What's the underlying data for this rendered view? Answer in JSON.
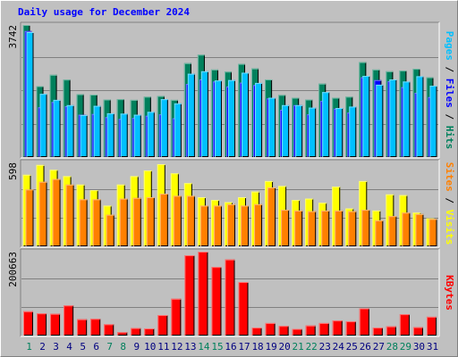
{
  "title": "Daily usage for December 2024",
  "colors": {
    "background": "#c0c0c0",
    "title": "#0000ff",
    "grid": "#808080",
    "hits": "#00805c",
    "files": "#0000ff",
    "pages": "#00c0ff",
    "visits": "#ffff00",
    "sites": "#ff8000",
    "kbytes": "#ff0000",
    "weekend_day": "#00805c",
    "weekday": "#000080"
  },
  "chart_data": [
    {
      "type": "bar",
      "panel": "top",
      "ylabel": "Pages / Files / Hits",
      "ylabel_parts": [
        {
          "text": "Pages",
          "color": "#00c0ff"
        },
        {
          "text": " / ",
          "color": "#000000"
        },
        {
          "text": "Files",
          "color": "#0000ff"
        },
        {
          "text": " / ",
          "color": "#000000"
        },
        {
          "text": "Hits",
          "color": "#00805c"
        }
      ],
      "ymax_label": "3742",
      "ylim": [
        0,
        3742
      ],
      "categories": [
        "1",
        "2",
        "3",
        "4",
        "5",
        "6",
        "7",
        "8",
        "9",
        "10",
        "11",
        "12",
        "13",
        "14",
        "15",
        "16",
        "17",
        "18",
        "19",
        "20",
        "21",
        "22",
        "23",
        "24",
        "25",
        "26",
        "27",
        "28",
        "29",
        "30",
        "31"
      ],
      "series": [
        {
          "name": "Hits",
          "color": "#00805c",
          "values": [
            3742,
            2010,
            2330,
            2195,
            1780,
            1770,
            1630,
            1640,
            1620,
            1710,
            1730,
            1620,
            2660,
            2900,
            2480,
            2420,
            2640,
            2510,
            2200,
            1760,
            1680,
            1630,
            2080,
            1680,
            1710,
            2690,
            2480,
            2430,
            2450,
            2500,
            2260
          ]
        },
        {
          "name": "Files",
          "color": "#0000ff",
          "values": [
            3570,
            1410,
            1560,
            1440,
            1200,
            1220,
            1130,
            1080,
            1110,
            1170,
            1210,
            1100,
            2070,
            2200,
            2140,
            2000,
            2110,
            2040,
            1660,
            1340,
            1470,
            1210,
            1590,
            1370,
            1260,
            2260,
            2180,
            2150,
            1980,
            1820,
            1700
          ]
        },
        {
          "name": "Pages",
          "color": "#00c0ff",
          "values": [
            3540,
            1790,
            1620,
            1470,
            1190,
            1450,
            1240,
            1230,
            1200,
            1280,
            1640,
            1520,
            2360,
            2430,
            2170,
            2180,
            2390,
            2100,
            1680,
            1470,
            1470,
            1400,
            1840,
            1390,
            1430,
            2300,
            2050,
            2200,
            2140,
            2290,
            2020
          ]
        }
      ]
    },
    {
      "type": "bar",
      "panel": "middle",
      "ylabel": "Sites / Visits",
      "ylabel_parts": [
        {
          "text": "Sites",
          "color": "#ff8000"
        },
        {
          "text": " / ",
          "color": "#000000"
        },
        {
          "text": "Visits",
          "color": "#ffff00"
        }
      ],
      "ymax_label": "598",
      "ylim": [
        0,
        598
      ],
      "categories": [
        "1",
        "2",
        "3",
        "4",
        "5",
        "6",
        "7",
        "8",
        "9",
        "10",
        "11",
        "12",
        "13",
        "14",
        "15",
        "16",
        "17",
        "18",
        "19",
        "20",
        "21",
        "22",
        "23",
        "24",
        "25",
        "26",
        "27",
        "28",
        "29",
        "30",
        "31"
      ],
      "series": [
        {
          "name": "Visits",
          "color": "#ffff00",
          "values": [
            510,
            580,
            545,
            500,
            440,
            400,
            290,
            440,
            500,
            540,
            585,
            520,
            450,
            350,
            330,
            315,
            350,
            390,
            465,
            430,
            330,
            340,
            310,
            425,
            270,
            465,
            255,
            370,
            365,
            240,
            200
          ]
        },
        {
          "name": "Sites",
          "color": "#ff8000",
          "values": [
            405,
            460,
            480,
            440,
            335,
            335,
            225,
            340,
            345,
            350,
            375,
            360,
            360,
            290,
            290,
            300,
            290,
            300,
            420,
            260,
            255,
            250,
            255,
            255,
            250,
            260,
            185,
            215,
            240,
            230,
            195
          ]
        }
      ]
    },
    {
      "type": "bar",
      "panel": "bottom",
      "ylabel": "KBytes",
      "ylabel_parts": [
        {
          "text": "KBytes",
          "color": "#ff0000"
        }
      ],
      "ymax_label": "200663",
      "ylim": [
        0,
        200663
      ],
      "categories": [
        "1",
        "2",
        "3",
        "4",
        "5",
        "6",
        "7",
        "8",
        "9",
        "10",
        "11",
        "12",
        "13",
        "14",
        "15",
        "16",
        "17",
        "18",
        "19",
        "20",
        "21",
        "22",
        "23",
        "24",
        "25",
        "26",
        "27",
        "28",
        "29",
        "30",
        "31"
      ],
      "series": [
        {
          "name": "KBytes",
          "color": "#ff0000",
          "values": [
            58000,
            53000,
            52000,
            72000,
            39000,
            40000,
            27000,
            8000,
            18000,
            17000,
            49000,
            88000,
            192000,
            200663,
            164000,
            182000,
            128000,
            19000,
            30000,
            23000,
            16000,
            24000,
            30000,
            36000,
            34000,
            65000,
            19000,
            22000,
            51000,
            20000,
            45000
          ]
        }
      ]
    }
  ],
  "x_axis": {
    "labels": [
      "1",
      "2",
      "3",
      "4",
      "5",
      "6",
      "7",
      "8",
      "9",
      "10",
      "11",
      "12",
      "13",
      "14",
      "15",
      "16",
      "17",
      "18",
      "19",
      "20",
      "21",
      "22",
      "23",
      "24",
      "25",
      "26",
      "27",
      "28",
      "29",
      "30",
      "31"
    ],
    "weekend": [
      1,
      7,
      8,
      14,
      15,
      21,
      22,
      28,
      29
    ]
  }
}
